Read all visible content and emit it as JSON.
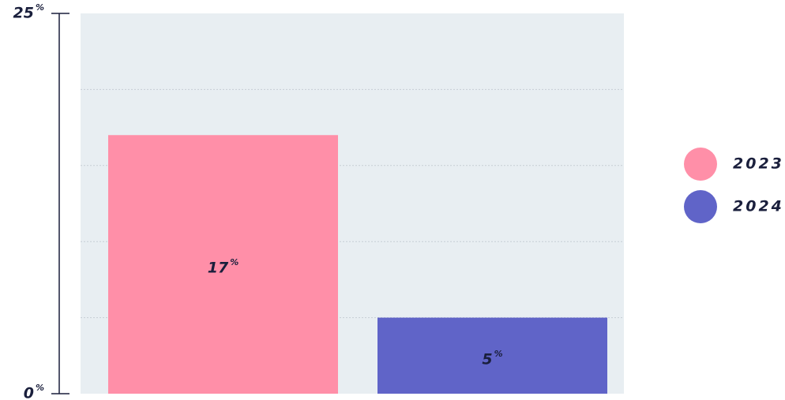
{
  "chart_data": {
    "type": "bar",
    "categories": [
      "2023",
      "2024"
    ],
    "values": [
      17,
      5
    ],
    "value_labels": [
      "17%",
      "5%"
    ],
    "colors": [
      "#ff8fa8",
      "#6064c8"
    ],
    "ylim": [
      0,
      25
    ],
    "yticks": [
      {
        "value": 0,
        "label": "0%"
      },
      {
        "value": 25,
        "label": "25%"
      }
    ],
    "ygrid": [
      5,
      10,
      15,
      20
    ],
    "legend": "right"
  }
}
